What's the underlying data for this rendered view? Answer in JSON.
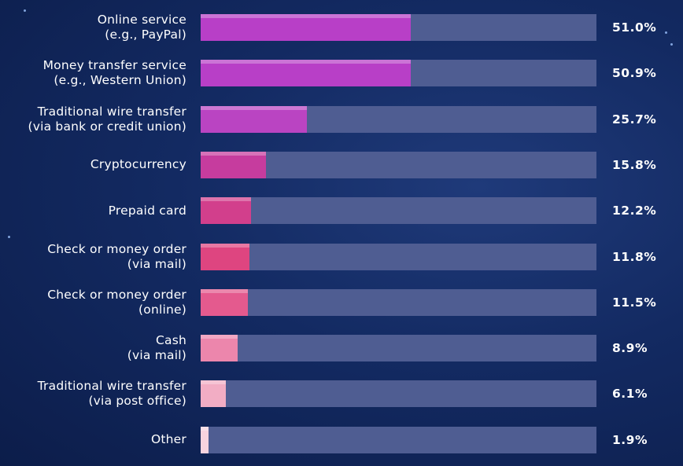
{
  "chart_data": {
    "type": "bar",
    "orientation": "horizontal",
    "categories": [
      "Online service\n(e.g., PayPal)",
      "Money transfer service\n(e.g., Western Union)",
      "Traditional wire transfer\n(via bank or credit union)",
      "Cryptocurrency",
      "Prepaid card",
      "Check or money order\n(via mail)",
      "Check or money order\n(online)",
      "Cash\n(via mail)",
      "Traditional wire transfer\n(via post office)",
      "Other"
    ],
    "values": [
      51.0,
      50.9,
      25.7,
      15.8,
      12.2,
      11.8,
      11.5,
      8.9,
      6.1,
      1.9
    ],
    "value_labels": [
      "51.0%",
      "50.9%",
      "25.7%",
      "15.8%",
      "12.2%",
      "11.8%",
      "11.5%",
      "8.9%",
      "6.1%",
      "1.9%"
    ],
    "xlim": [
      0,
      96
    ],
    "unit": "%",
    "grid": false,
    "legend": "none",
    "colors": [
      "#b83fc7",
      "#b83fc7",
      "#ba44c2",
      "#c63c9e",
      "#d23f8c",
      "#de4580",
      "#e45a8e",
      "#ec86ac",
      "#f2adc4",
      "#f8d3df"
    ]
  }
}
